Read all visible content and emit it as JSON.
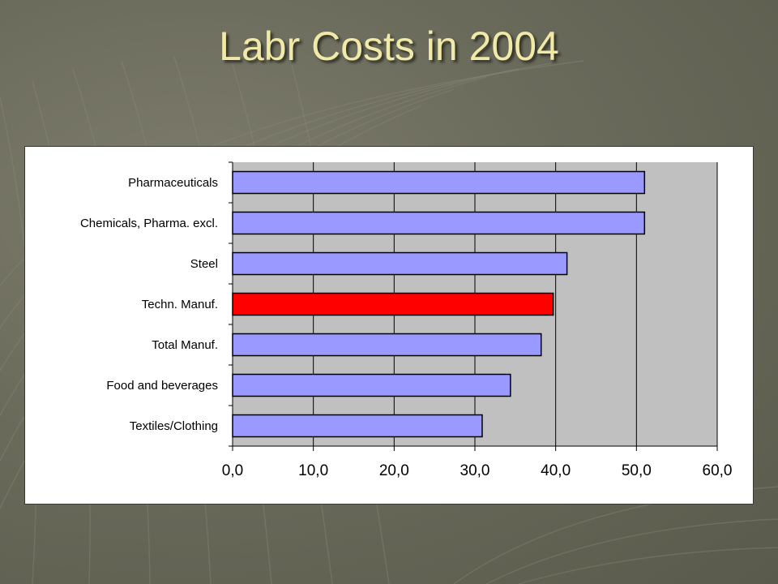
{
  "slide": {
    "title": "Labr Costs in 2004"
  },
  "colors": {
    "bar_default": "#9999ff",
    "bar_highlight": "#ff0000",
    "plot_background": "#c0c0c0",
    "title_text": "#f0e9a8"
  },
  "chart_data": {
    "type": "bar",
    "orientation": "horizontal",
    "categories": [
      "Pharmaceuticals",
      "Chemicals, Pharma. excl.",
      "Steel",
      "Techn. Manuf.",
      "Total Manuf.",
      "Food and beverages",
      "Textiles/Clothing"
    ],
    "values": [
      51.0,
      51.0,
      41.4,
      39.7,
      38.2,
      34.4,
      30.9
    ],
    "highlight_category": "Techn. Manuf.",
    "xlim": [
      0,
      60
    ],
    "xticks": [
      0,
      10,
      20,
      30,
      40,
      50,
      60
    ],
    "xtick_labels": [
      "0,0",
      "10,0",
      "20,0",
      "30,0",
      "40,0",
      "50,0",
      "60,0"
    ],
    "grid": "vertical",
    "legend": "none"
  }
}
